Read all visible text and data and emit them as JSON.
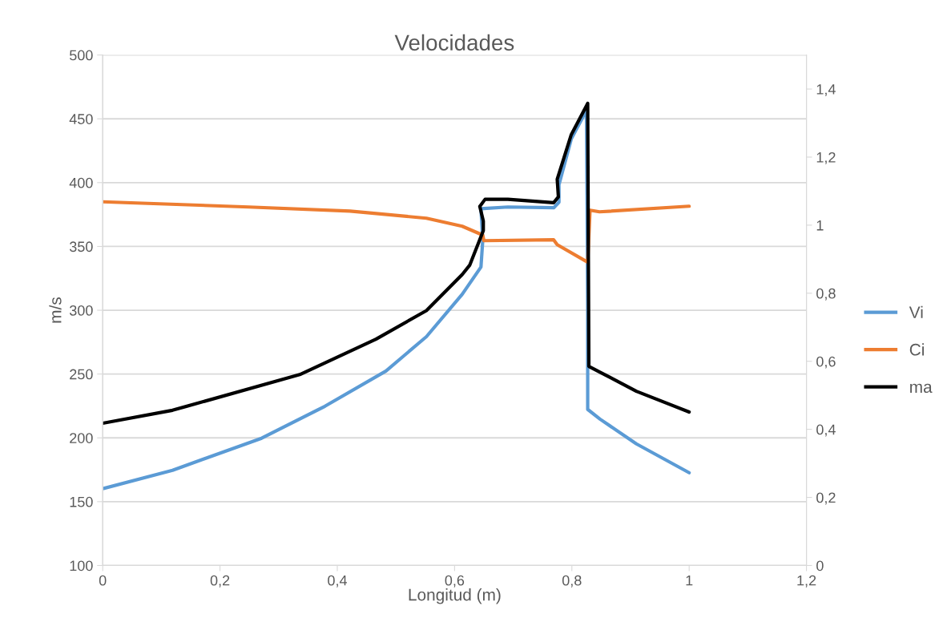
{
  "chart_data": {
    "type": "line",
    "title": "Velocidades",
    "xlabel": "Longitud (m)",
    "ylabel": "m/s",
    "xlim": [
      0,
      1.2
    ],
    "xticks": [
      {
        "value": 0,
        "label": "0"
      },
      {
        "value": 0.2,
        "label": "0,2"
      },
      {
        "value": 0.4,
        "label": "0,4"
      },
      {
        "value": 0.6,
        "label": "0,6"
      },
      {
        "value": 0.8,
        "label": "0,8"
      },
      {
        "value": 1,
        "label": "1"
      },
      {
        "value": 1.2,
        "label": "1,2"
      }
    ],
    "ylim": [
      100,
      500
    ],
    "yticks": [
      100,
      150,
      200,
      250,
      300,
      350,
      400,
      450,
      500
    ],
    "y2lim": [
      0,
      1.5
    ],
    "y2ticks": [
      {
        "value": 0,
        "label": "0"
      },
      {
        "value": 0.2,
        "label": "0,2"
      },
      {
        "value": 0.4,
        "label": "0,4"
      },
      {
        "value": 0.6,
        "label": "0,6"
      },
      {
        "value": 0.8,
        "label": "0,8"
      },
      {
        "value": 1,
        "label": "1"
      },
      {
        "value": 1.2,
        "label": "1,2"
      },
      {
        "value": 1.4,
        "label": "1,4"
      }
    ],
    "grid": "y",
    "legend": "right",
    "marker": "none",
    "line_style": "solid",
    "series": [
      {
        "name": "Vi",
        "color": "#5b9bd5",
        "x": [
          0,
          0.119,
          0.271,
          0.379,
          0.483,
          0.552,
          0.613,
          0.645,
          0.648,
          0.645,
          0.691,
          0.769,
          0.778,
          0.778,
          0.799,
          0.825,
          0.827,
          0.827,
          0.848,
          0.91,
          1.0
        ],
        "values": [
          160.2,
          174.6,
          199.7,
          224.8,
          252.4,
          279.3,
          312.5,
          333.9,
          354.5,
          379.6,
          380.9,
          380.3,
          384.6,
          398.4,
          434.2,
          456.7,
          300,
          222.3,
          214.7,
          195.3,
          172.7
        ]
      },
      {
        "name": "Ci",
        "color": "#ed7d31",
        "x": [
          0,
          0.249,
          0.422,
          0.552,
          0.613,
          0.648,
          0.65,
          0.769,
          0.775,
          0.827,
          0.831,
          0.847,
          1.0
        ],
        "values": [
          385,
          380.9,
          377.7,
          372.1,
          365.8,
          358.9,
          354.5,
          355.2,
          351.4,
          337.6,
          378.4,
          377.1,
          381.5
        ]
      },
      {
        "name": "ma",
        "color": "#000000",
        "axis": "y2",
        "x": [
          0,
          0.119,
          0.336,
          0.466,
          0.552,
          0.613,
          0.626,
          0.649,
          0.649,
          0.643,
          0.652,
          0.691,
          0.769,
          0.777,
          0.775,
          0.799,
          0.827,
          0.829,
          0.848,
          0.91,
          1.0
        ],
        "values": [
          0.418,
          0.456,
          0.561,
          0.665,
          0.749,
          0.855,
          0.883,
          0.984,
          1.012,
          1.055,
          1.076,
          1.076,
          1.066,
          1.083,
          1.135,
          1.266,
          1.358,
          0.585,
          0.568,
          0.512,
          0.451
        ]
      }
    ]
  }
}
